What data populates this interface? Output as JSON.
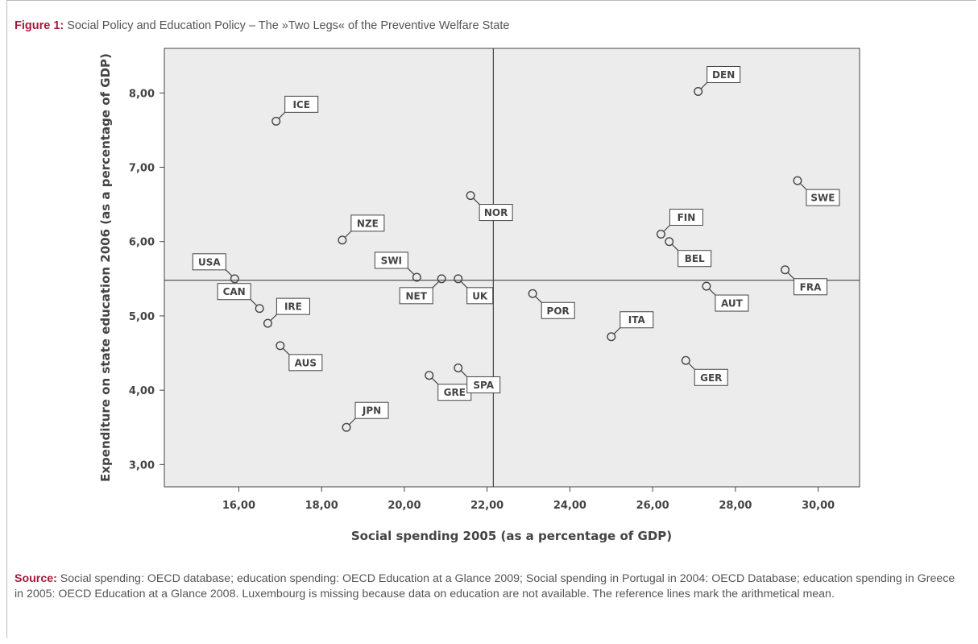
{
  "caption": {
    "prefix": "Figure 1:",
    "text": "Social Policy and Education Policy – The »Two Legs« of the Preventive Welfare State"
  },
  "source": {
    "prefix": "Source:",
    "text": "Social spending: OECD database; education spending: OECD Education at a Glance 2009; Social spending in Portugal in 2004: OECD Database; education spending in Greece in 2005: OECD Education at a Glance 2008. Luxembourg is missing because data on education are not available. The reference lines mark the arithmetical mean."
  },
  "chart_data": {
    "type": "scatter",
    "xlabel": "Social spending 2005 (as a percentage of GDP)",
    "ylabel": "Expenditure on state education 2006 (as a percentage of GDP)",
    "xlim": [
      14.2,
      31.0
    ],
    "ylim": [
      2.7,
      8.6
    ],
    "xticks": [
      16,
      18,
      20,
      22,
      24,
      26,
      28,
      30
    ],
    "yticks": [
      3,
      4,
      5,
      6,
      7,
      8
    ],
    "xtick_labels": [
      "16,00",
      "18,00",
      "20,00",
      "22,00",
      "24,00",
      "26,00",
      "28,00",
      "30,00"
    ],
    "ytick_labels": [
      "3,00",
      "4,00",
      "5,00",
      "6,00",
      "7,00",
      "8,00"
    ],
    "reference_lines": {
      "x_mean": 22.15,
      "y_mean": 5.48
    },
    "grid": false,
    "points": [
      {
        "label": "DEN",
        "x": 27.1,
        "y": 8.02,
        "dir": "ur"
      },
      {
        "label": "ICE",
        "x": 16.9,
        "y": 7.62,
        "dir": "ur"
      },
      {
        "label": "SWE",
        "x": 29.5,
        "y": 6.82,
        "dir": "dr"
      },
      {
        "label": "NOR",
        "x": 21.6,
        "y": 6.62,
        "dir": "dr"
      },
      {
        "label": "NZE",
        "x": 18.5,
        "y": 6.02,
        "dir": "ur"
      },
      {
        "label": "FIN",
        "x": 26.2,
        "y": 6.1,
        "dir": "ur"
      },
      {
        "label": "BEL",
        "x": 26.4,
        "y": 6.0,
        "dir": "dr"
      },
      {
        "label": "USA",
        "x": 15.9,
        "y": 5.5,
        "dir": "ul"
      },
      {
        "label": "SWI",
        "x": 20.3,
        "y": 5.52,
        "dir": "ul"
      },
      {
        "label": "NET",
        "x": 20.9,
        "y": 5.5,
        "dir": "dl"
      },
      {
        "label": "UK",
        "x": 21.3,
        "y": 5.5,
        "dir": "dr"
      },
      {
        "label": "FRA",
        "x": 29.2,
        "y": 5.62,
        "dir": "dr"
      },
      {
        "label": "CAN",
        "x": 16.5,
        "y": 5.1,
        "dir": "ul"
      },
      {
        "label": "AUT",
        "x": 27.3,
        "y": 5.4,
        "dir": "dr"
      },
      {
        "label": "POR",
        "x": 23.1,
        "y": 5.3,
        "dir": "dr"
      },
      {
        "label": "IRE",
        "x": 16.7,
        "y": 4.9,
        "dir": "ur"
      },
      {
        "label": "ITA",
        "x": 25.0,
        "y": 4.72,
        "dir": "ur"
      },
      {
        "label": "AUS",
        "x": 17.0,
        "y": 4.6,
        "dir": "dr"
      },
      {
        "label": "GER",
        "x": 26.8,
        "y": 4.4,
        "dir": "dr"
      },
      {
        "label": "GRE",
        "x": 20.6,
        "y": 4.2,
        "dir": "dr"
      },
      {
        "label": "SPA",
        "x": 21.3,
        "y": 4.3,
        "dir": "dr"
      },
      {
        "label": "JPN",
        "x": 18.6,
        "y": 3.5,
        "dir": "ur"
      }
    ]
  }
}
